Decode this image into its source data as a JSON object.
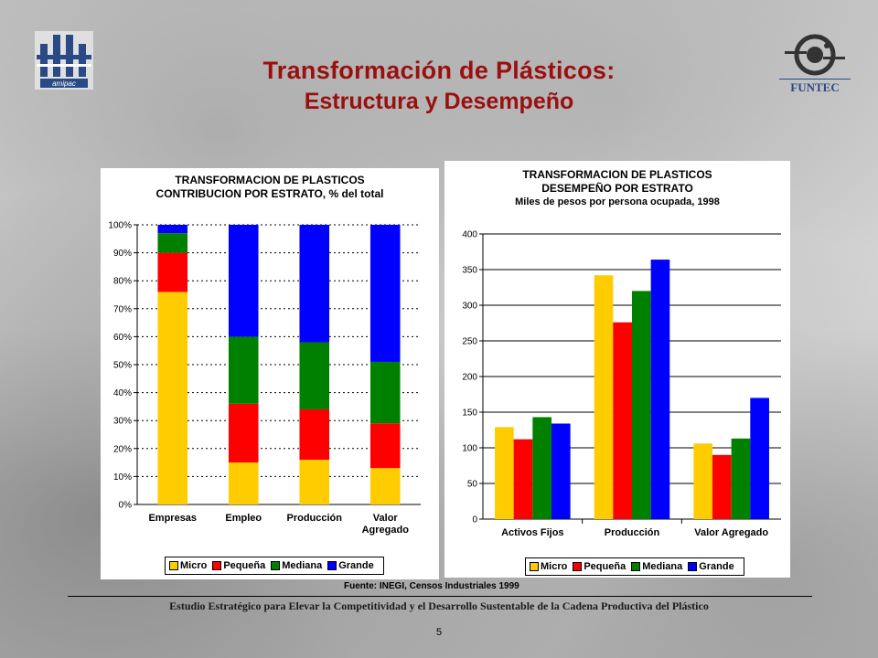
{
  "header": {
    "title_line1": "Transformación de Plásticos:",
    "title_line2": "Estructura y Desempeño"
  },
  "logos": {
    "left": "amipac",
    "right": "FUNTEC"
  },
  "colors": {
    "micro": "#ffcc00",
    "pequena": "#ff0000",
    "mediana": "#008000",
    "grande": "#0000ff",
    "title": "#9a0f0f"
  },
  "chart_data": [
    {
      "type": "bar",
      "stacked": "percent",
      "title": "TRANSFORMACION DE PLASTICOS",
      "subtitle": "CONTRIBUCION POR ESTRATO, % del total",
      "categories": [
        "Empresas",
        "Empleo",
        "Producción",
        "Valor Agregado"
      ],
      "category_lines": [
        [
          "Empresas"
        ],
        [
          "Empleo"
        ],
        [
          "Producción"
        ],
        [
          "Valor",
          "Agregado"
        ]
      ],
      "series": [
        {
          "name": "Micro",
          "color": "#ffcc00",
          "values": [
            76,
            15,
            16,
            13
          ]
        },
        {
          "name": "Pequeña",
          "color": "#ff0000",
          "values": [
            14,
            21,
            18,
            16
          ]
        },
        {
          "name": "Mediana",
          "color": "#008000",
          "values": [
            7,
            24,
            24,
            22
          ]
        },
        {
          "name": "Grande",
          "color": "#0000ff",
          "values": [
            3,
            40,
            42,
            49
          ]
        }
      ],
      "ylim": [
        0,
        100
      ],
      "yticks": [
        "0%",
        "10%",
        "20%",
        "30%",
        "40%",
        "50%",
        "60%",
        "70%",
        "80%",
        "90%",
        "100%"
      ],
      "grid": true,
      "legend": "bottom"
    },
    {
      "type": "bar",
      "title": "TRANSFORMACION DE PLASTICOS",
      "subtitle": "DESEMPEÑO POR ESTRATO",
      "note": "Miles de pesos por persona ocupada, 1998",
      "categories": [
        "Activos Fijos",
        "Producción",
        "Valor Agregado"
      ],
      "series": [
        {
          "name": "Micro",
          "color": "#ffcc00",
          "values": [
            129,
            342,
            106
          ]
        },
        {
          "name": "Pequeña",
          "color": "#ff0000",
          "values": [
            112,
            276,
            90
          ]
        },
        {
          "name": "Mediana",
          "color": "#008000",
          "values": [
            143,
            320,
            113
          ]
        },
        {
          "name": "Grande",
          "color": "#0000ff",
          "values": [
            134,
            364,
            170
          ]
        }
      ],
      "ylim": [
        0,
        400
      ],
      "yticks": [
        "0",
        "50",
        "100",
        "150",
        "200",
        "250",
        "300",
        "350",
        "400"
      ],
      "grid": true,
      "legend": "bottom"
    }
  ],
  "source": "Fuente: INEGI, Censos Industriales 1999",
  "footer": "Estudio Estratégico para Elevar la Competitividad y el Desarrollo Sustentable de la Cadena Productiva del Plástico",
  "page_number": "5"
}
